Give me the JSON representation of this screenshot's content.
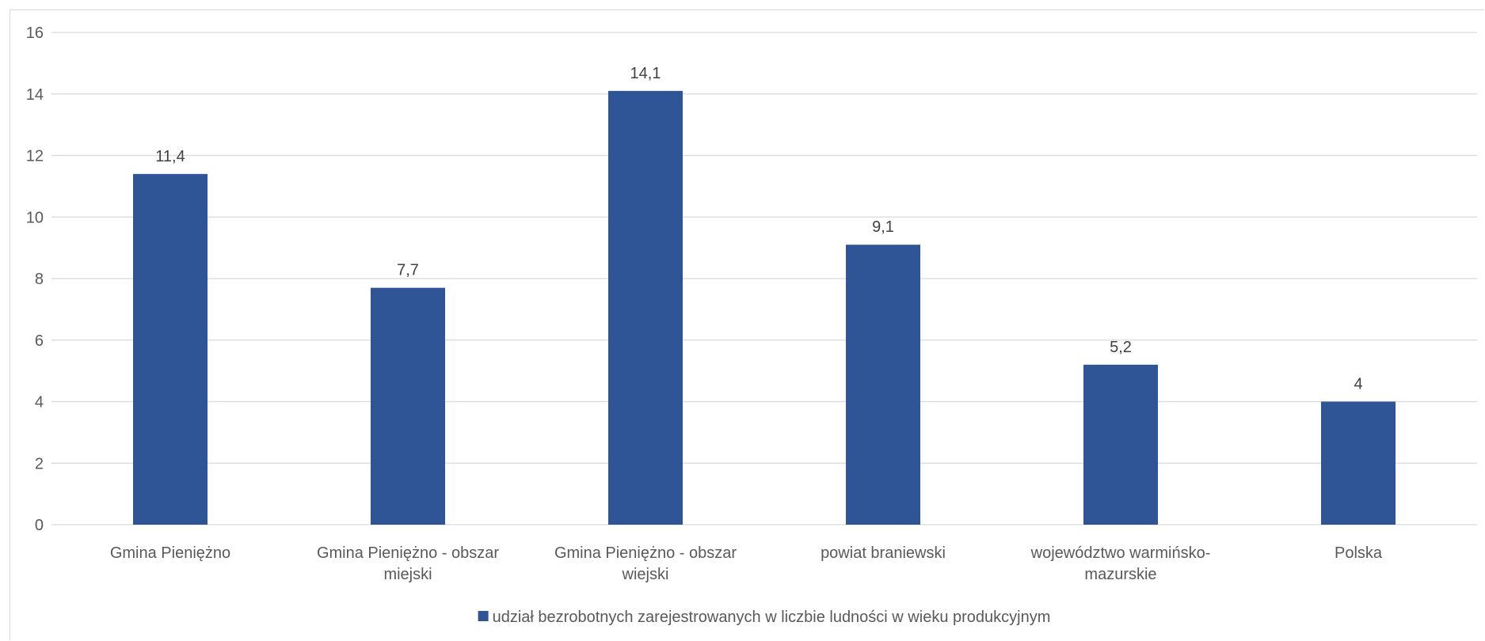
{
  "chart_data": {
    "type": "bar",
    "categories": [
      [
        "Gmina Pieniężno"
      ],
      [
        "Gmina Pieniężno - obszar",
        "miejski"
      ],
      [
        "Gmina Pieniężno - obszar",
        "wiejski"
      ],
      [
        "powiat braniewski"
      ],
      [
        "województwo warmińsko-",
        "mazurskie"
      ],
      [
        "Polska"
      ]
    ],
    "series": [
      {
        "name": "udział bezrobotnych zarejestrowanych w liczbie ludności w wieku produkcyjnym",
        "values": [
          11.4,
          7.7,
          14.1,
          9.1,
          5.2,
          4
        ],
        "labels": [
          "11,4",
          "7,7",
          "14,1",
          "9,1",
          "5,2",
          "4"
        ],
        "color": "#2f5597"
      }
    ],
    "ylim": [
      0,
      16
    ],
    "yticks": [
      0,
      2,
      4,
      6,
      8,
      10,
      12,
      14,
      16
    ],
    "grid": true,
    "legend_position": "bottom",
    "gridline_color": "#d9d9d9"
  }
}
